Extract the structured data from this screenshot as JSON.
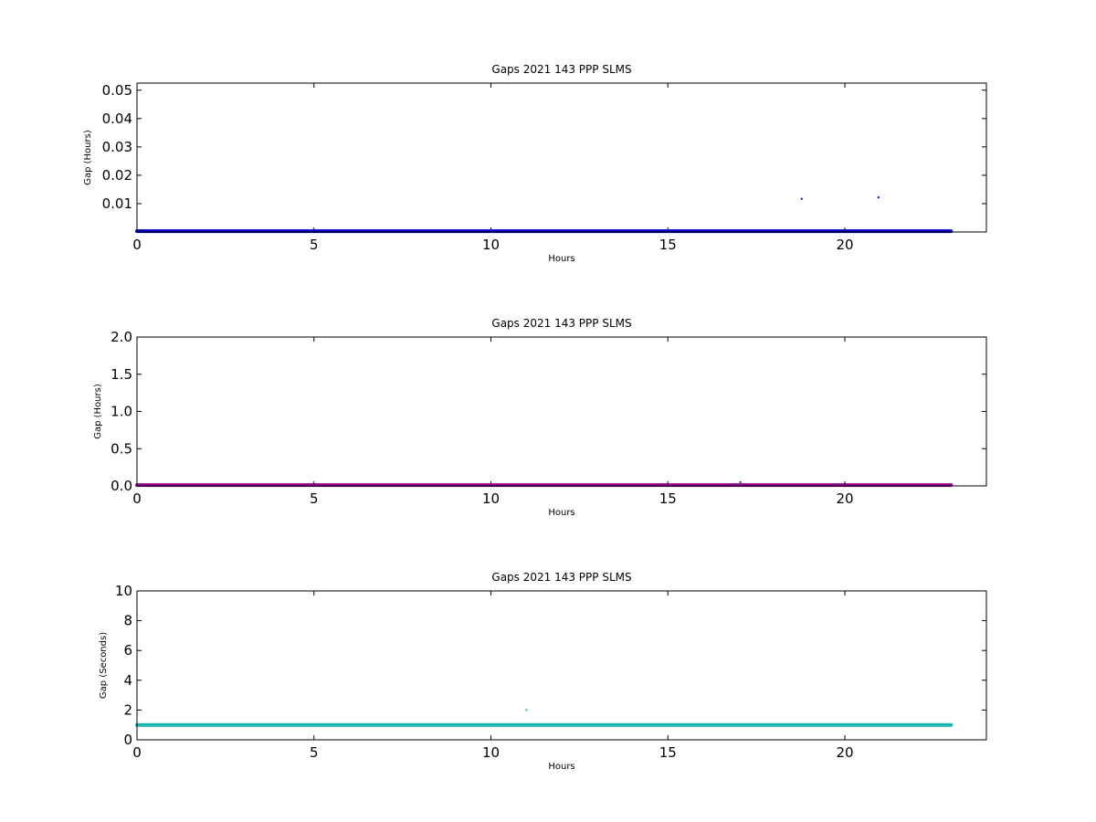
{
  "chart_data": [
    {
      "type": "scatter",
      "title": "Gaps 2021 143 PPP  SLMS",
      "xlabel": "Hours",
      "ylabel": "Gap (Hours)",
      "xlim": [
        0,
        24
      ],
      "ylim": [
        0,
        0.0525
      ],
      "xticks": [
        0,
        5,
        10,
        15,
        20
      ],
      "yticks": [
        0.01,
        0.02,
        0.03,
        0.04,
        0.05
      ],
      "ytick_labels": [
        "0.01",
        "0.02",
        "0.03",
        "0.04",
        "0.05"
      ],
      "grid": false,
      "color": "#0000cc",
      "series": [
        {
          "band": {
            "x_start": 0,
            "x_end": 23.0,
            "y": 0.0003
          },
          "points": [
            {
              "x": 18.78,
              "y": 0.0117
            },
            {
              "x": 20.95,
              "y": 0.0122
            }
          ]
        }
      ]
    },
    {
      "type": "scatter",
      "title": "Gaps 2021 143 PPP  SLMS",
      "xlabel": "Hours",
      "ylabel": "Gap (Hours)",
      "xlim": [
        0,
        24
      ],
      "ylim": [
        0,
        2.0
      ],
      "xticks": [
        0,
        5,
        10,
        15,
        20
      ],
      "yticks": [
        0,
        0.5,
        1.0,
        1.5,
        2.0
      ],
      "ytick_labels": [
        "0.0",
        "0.5",
        "1.0",
        "1.5",
        "2.0"
      ],
      "grid": false,
      "color": "#990099",
      "series": [
        {
          "band": {
            "x_start": 0,
            "x_end": 23.0,
            "y": 0.01
          },
          "points": [
            {
              "x": 17.05,
              "y": 0.05
            }
          ]
        }
      ]
    },
    {
      "type": "scatter",
      "title": "Gaps 2021 143 PPP  SLMS",
      "xlabel": "Hours",
      "ylabel": "Gap (Seconds)",
      "xlim": [
        0,
        24
      ],
      "ylim": [
        0,
        10
      ],
      "xticks": [
        0,
        5,
        10,
        15,
        20
      ],
      "yticks": [
        0,
        2,
        4,
        6,
        8,
        10
      ],
      "ytick_labels": [
        "0",
        "2",
        "4",
        "6",
        "8",
        "10"
      ],
      "grid": false,
      "color": "#17b8b0",
      "series": [
        {
          "band": {
            "x_start": 0,
            "x_end": 23.0,
            "y": 1.0
          },
          "points": [
            {
              "x": 11.0,
              "y": 2.0
            }
          ]
        }
      ]
    }
  ]
}
